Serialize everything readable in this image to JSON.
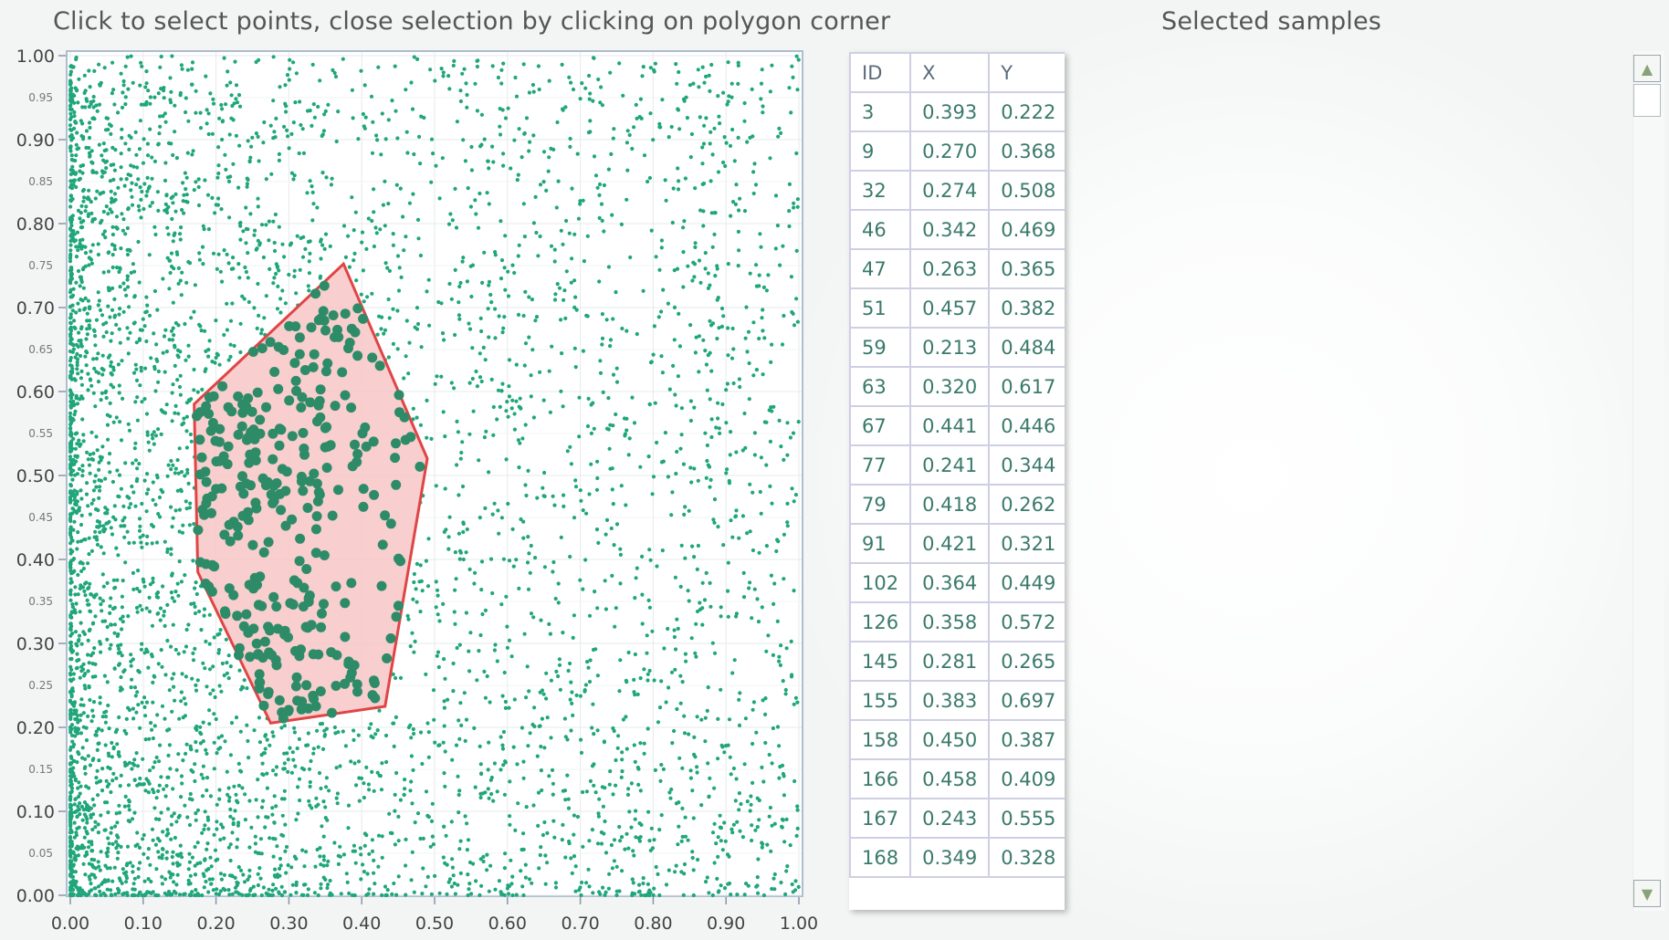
{
  "plot": {
    "title": "Click to select points, close selection by clicking on polygon corner",
    "point_color": "#1fa67a",
    "selected_color": "#2e8b68",
    "polygon_fill": "#f7c6c6",
    "polygon_stroke": "#e04545"
  },
  "table": {
    "title": "Selected samples",
    "headers": [
      "ID",
      "X",
      "Y"
    ],
    "rows": [
      [
        "3",
        "0.393",
        "0.222"
      ],
      [
        "9",
        "0.270",
        "0.368"
      ],
      [
        "32",
        "0.274",
        "0.508"
      ],
      [
        "46",
        "0.342",
        "0.469"
      ],
      [
        "47",
        "0.263",
        "0.365"
      ],
      [
        "51",
        "0.457",
        "0.382"
      ],
      [
        "59",
        "0.213",
        "0.484"
      ],
      [
        "63",
        "0.320",
        "0.617"
      ],
      [
        "67",
        "0.441",
        "0.446"
      ],
      [
        "77",
        "0.241",
        "0.344"
      ],
      [
        "79",
        "0.418",
        "0.262"
      ],
      [
        "91",
        "0.421",
        "0.321"
      ],
      [
        "102",
        "0.364",
        "0.449"
      ],
      [
        "126",
        "0.358",
        "0.572"
      ],
      [
        "145",
        "0.281",
        "0.265"
      ],
      [
        "155",
        "0.383",
        "0.697"
      ],
      [
        "158",
        "0.450",
        "0.387"
      ],
      [
        "166",
        "0.458",
        "0.409"
      ],
      [
        "167",
        "0.243",
        "0.555"
      ],
      [
        "168",
        "0.349",
        "0.328"
      ]
    ]
  },
  "scrollbar": {
    "up_icon": "triangle-up-icon",
    "down_icon": "triangle-down-icon"
  },
  "chart_data": {
    "type": "scatter",
    "title": "Click to select points, close selection by clicking on polygon corner",
    "xlim": [
      0,
      1
    ],
    "ylim": [
      0,
      1
    ],
    "x_ticks": [
      "0.00",
      "0.10",
      "0.20",
      "0.30",
      "0.40",
      "0.50",
      "0.60",
      "0.70",
      "0.80",
      "0.90",
      "1.00"
    ],
    "y_major_ticks": [
      "0.00",
      "0.10",
      "0.20",
      "0.30",
      "0.40",
      "0.50",
      "0.60",
      "0.70",
      "0.80",
      "0.90",
      "1.00"
    ],
    "y_minor_ticks": [
      "0.05",
      "0.15",
      "0.25",
      "0.35",
      "0.45",
      "0.55",
      "0.65",
      "0.75",
      "0.85",
      "0.95"
    ],
    "grid": true,
    "selection_polygon": [
      {
        "x": 0.375,
        "y": 0.752
      },
      {
        "x": 0.49,
        "y": 0.52
      },
      {
        "x": 0.432,
        "y": 0.225
      },
      {
        "x": 0.275,
        "y": 0.205
      },
      {
        "x": 0.175,
        "y": 0.385
      },
      {
        "x": 0.17,
        "y": 0.585
      }
    ]
  }
}
